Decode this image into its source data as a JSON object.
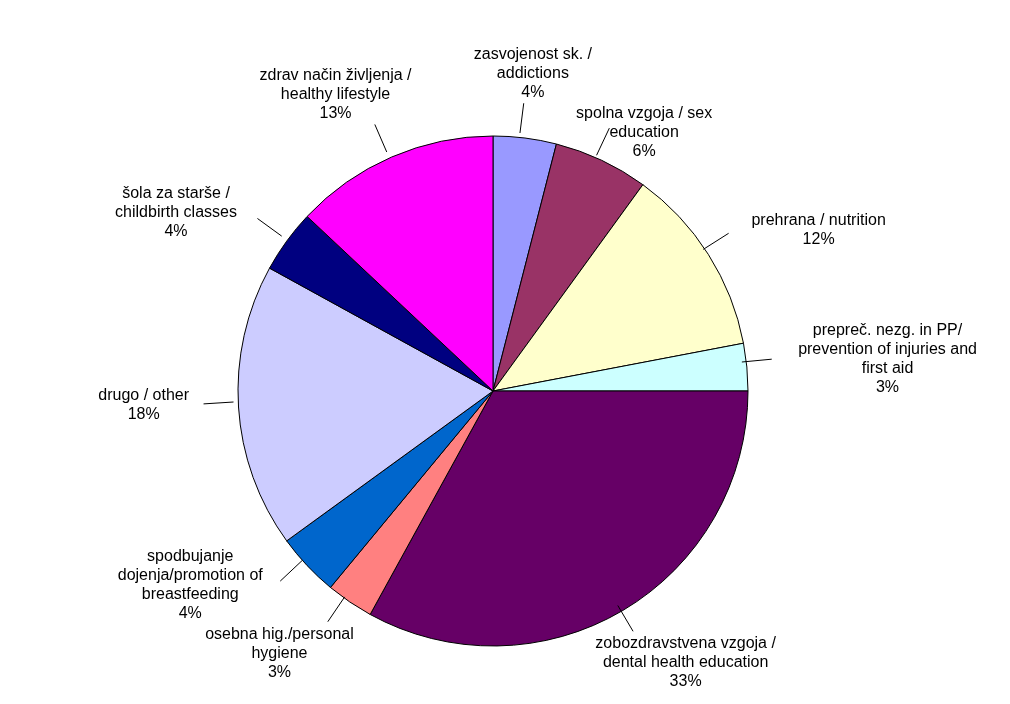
{
  "chart_data": {
    "type": "pie",
    "categories": [
      "zasvojenost sk. / addictions",
      "spolna vzgoja / sex education",
      "prehrana / nutrition",
      "prepreč. nezg. in PP/ prevention of injuries and first aid",
      "zobozdravstvena vzgoja / dental health education",
      "osebna hig./personal hygiene",
      "spodbujanje dojenja/promotion of breastfeeding",
      "drugo / other",
      "šola za starše / childbirth classes",
      "zdrav način življenja / healthy lifestyle"
    ],
    "values": [
      4,
      6,
      12,
      3,
      33,
      3,
      4,
      18,
      4,
      13
    ],
    "value_labels": [
      "4%",
      "6%",
      "12%",
      "3%",
      "33%",
      "3%",
      "4%",
      "18%",
      "4%",
      "13%"
    ],
    "colors": [
      "#9999ff",
      "#993366",
      "#ffffcc",
      "#ccffff",
      "#660066",
      "#ff8080",
      "#0066cc",
      "#ccccff",
      "#000080",
      "#ff00ff"
    ],
    "legend": false
  }
}
